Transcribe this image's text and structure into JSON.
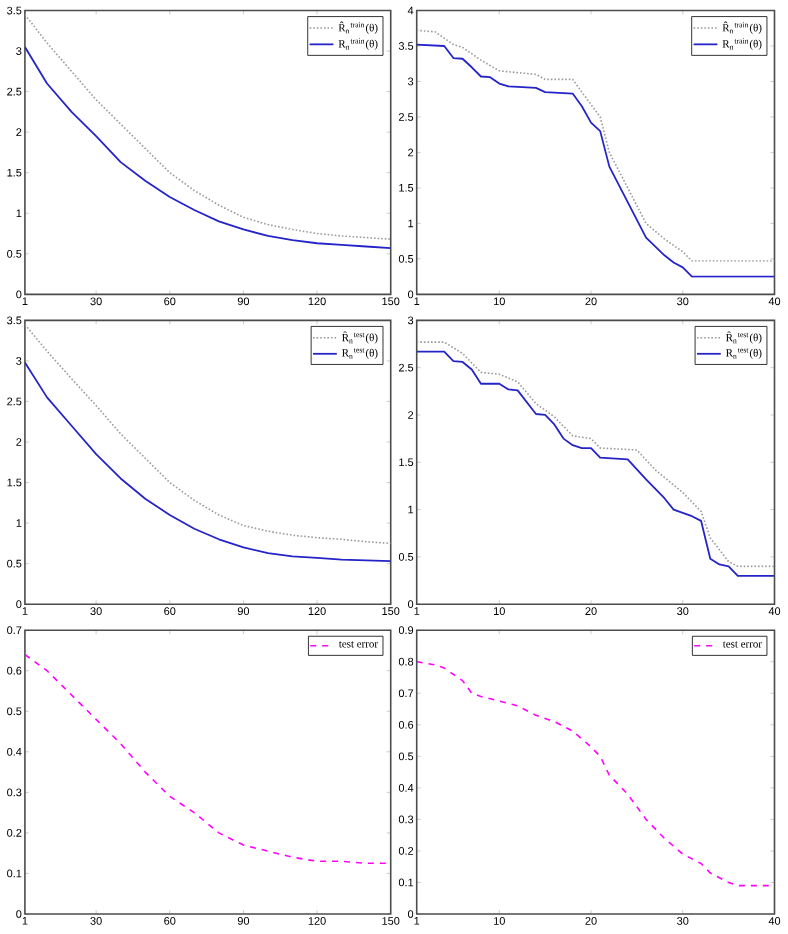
{
  "chart_data": [
    {
      "type": "line",
      "xlim": [
        1,
        150
      ],
      "ylim": [
        0,
        3.5
      ],
      "xticks": [
        1,
        30,
        60,
        90,
        120,
        150
      ],
      "yticks": [
        0,
        0.5,
        1,
        1.5,
        2,
        2.5,
        3,
        3.5
      ],
      "legend": "top right",
      "series": [
        {
          "name": "R̂$_{n}$$^{train}$(θ)",
          "color": "#9a9a9a",
          "line_style": "dotted",
          "x": [
            1,
            10,
            20,
            30,
            40,
            50,
            60,
            70,
            80,
            90,
            100,
            110,
            120,
            130,
            140,
            150
          ],
          "values": [
            3.45,
            3.1,
            2.75,
            2.4,
            2.1,
            1.8,
            1.5,
            1.28,
            1.1,
            0.95,
            0.86,
            0.8,
            0.75,
            0.72,
            0.7,
            0.68
          ]
        },
        {
          "name": "R$_{n}$$^{train}$(θ)",
          "color": "#2424c8",
          "line_style": "solid",
          "x": [
            1,
            10,
            20,
            30,
            40,
            50,
            60,
            70,
            80,
            90,
            100,
            110,
            120,
            130,
            140,
            150
          ],
          "values": [
            3.05,
            2.6,
            2.25,
            1.95,
            1.63,
            1.4,
            1.2,
            1.04,
            0.9,
            0.8,
            0.72,
            0.67,
            0.63,
            0.61,
            0.59,
            0.57
          ]
        }
      ]
    },
    {
      "type": "line",
      "xlim": [
        1,
        40
      ],
      "ylim": [
        0,
        4
      ],
      "xticks": [
        1,
        10,
        20,
        30,
        40
      ],
      "yticks": [
        0,
        0.5,
        1,
        1.5,
        2,
        2.5,
        3,
        3.5,
        4
      ],
      "legend": "top right",
      "series": [
        {
          "name": "R̂$_{n}$$^{train}$(θ)",
          "color": "#9a9a9a",
          "line_style": "dotted",
          "x": [
            1,
            3,
            5,
            6,
            8,
            10,
            14,
            15,
            18,
            19,
            21,
            22,
            24,
            26,
            28,
            30,
            31,
            40
          ],
          "values": [
            3.72,
            3.7,
            3.52,
            3.48,
            3.3,
            3.15,
            3.1,
            3.03,
            3.03,
            2.85,
            2.5,
            2.0,
            1.5,
            1.0,
            0.78,
            0.6,
            0.47,
            0.47
          ]
        },
        {
          "name": "R$_{n}$$^{train}$(θ)",
          "color": "#2424c8",
          "line_style": "solid",
          "x": [
            1,
            4,
            5,
            6,
            7,
            8,
            9,
            10,
            11,
            14,
            15,
            18,
            19,
            20,
            21,
            22,
            24,
            26,
            28,
            29,
            30,
            31,
            40
          ],
          "values": [
            3.52,
            3.5,
            3.33,
            3.32,
            3.2,
            3.07,
            3.06,
            2.97,
            2.93,
            2.91,
            2.85,
            2.83,
            2.65,
            2.42,
            2.3,
            1.8,
            1.3,
            0.8,
            0.55,
            0.45,
            0.38,
            0.25,
            0.25
          ]
        }
      ]
    },
    {
      "type": "line",
      "xlim": [
        1,
        150
      ],
      "ylim": [
        0,
        3.5
      ],
      "xticks": [
        1,
        30,
        60,
        90,
        120,
        150
      ],
      "yticks": [
        0,
        0.5,
        1,
        1.5,
        2,
        2.5,
        3,
        3.5
      ],
      "legend": "top right",
      "series": [
        {
          "name": "R̂$_{n}$$^{test}$(θ)",
          "color": "#9a9a9a",
          "line_style": "dotted",
          "x": [
            1,
            10,
            20,
            30,
            40,
            50,
            60,
            70,
            80,
            90,
            100,
            110,
            120,
            130,
            140,
            150
          ],
          "values": [
            3.45,
            3.12,
            2.78,
            2.45,
            2.1,
            1.8,
            1.5,
            1.28,
            1.1,
            0.97,
            0.9,
            0.85,
            0.82,
            0.8,
            0.77,
            0.75
          ]
        },
        {
          "name": "R$_{n}$$^{test}$(θ)",
          "color": "#2424c8",
          "line_style": "solid",
          "x": [
            1,
            10,
            20,
            30,
            40,
            50,
            60,
            70,
            80,
            90,
            100,
            110,
            120,
            130,
            140,
            150
          ],
          "values": [
            2.98,
            2.55,
            2.2,
            1.85,
            1.55,
            1.3,
            1.1,
            0.93,
            0.8,
            0.7,
            0.63,
            0.59,
            0.57,
            0.55,
            0.54,
            0.53
          ]
        }
      ]
    },
    {
      "type": "line",
      "xlim": [
        1,
        40
      ],
      "ylim": [
        0,
        3
      ],
      "xticks": [
        1,
        10,
        20,
        30,
        40
      ],
      "yticks": [
        0,
        0.5,
        1,
        1.5,
        2,
        2.5,
        3
      ],
      "legend": "top right",
      "series": [
        {
          "name": "R̂$_{n}$$^{test}$(θ)",
          "color": "#9a9a9a",
          "line_style": "dotted",
          "x": [
            1,
            4,
            6,
            8,
            10,
            12,
            14,
            16,
            18,
            20,
            21,
            25,
            27,
            30,
            32,
            33,
            35,
            36,
            40
          ],
          "values": [
            2.77,
            2.77,
            2.65,
            2.45,
            2.43,
            2.35,
            2.12,
            1.98,
            1.78,
            1.75,
            1.65,
            1.63,
            1.42,
            1.18,
            0.98,
            0.7,
            0.45,
            0.4,
            0.4
          ]
        },
        {
          "name": "R$_{n}$$^{test}$(θ)",
          "color": "#2424c8",
          "line_style": "solid",
          "x": [
            1,
            4,
            5,
            6,
            7,
            8,
            10,
            11,
            12,
            14,
            15,
            16,
            17,
            18,
            19,
            20,
            21,
            24,
            26,
            28,
            29,
            31,
            32,
            33,
            34,
            35,
            36,
            40
          ],
          "values": [
            2.67,
            2.67,
            2.57,
            2.56,
            2.48,
            2.33,
            2.33,
            2.27,
            2.26,
            2.01,
            2.0,
            1.9,
            1.75,
            1.68,
            1.65,
            1.65,
            1.55,
            1.53,
            1.32,
            1.12,
            1.0,
            0.93,
            0.88,
            0.48,
            0.42,
            0.4,
            0.3,
            0.3
          ]
        }
      ]
    },
    {
      "type": "line",
      "xlim": [
        1,
        150
      ],
      "ylim": [
        0,
        0.7
      ],
      "xticks": [
        1,
        30,
        60,
        90,
        120,
        150
      ],
      "yticks": [
        0,
        0.1,
        0.2,
        0.3,
        0.4,
        0.5,
        0.6,
        0.7
      ],
      "legend": "top right",
      "series": [
        {
          "name": "test error",
          "color": "#ff00ff",
          "line_style": "dashed",
          "x": [
            1,
            10,
            20,
            30,
            40,
            50,
            60,
            70,
            80,
            90,
            100,
            110,
            120,
            130,
            140,
            150
          ],
          "values": [
            0.64,
            0.6,
            0.54,
            0.48,
            0.42,
            0.35,
            0.29,
            0.25,
            0.2,
            0.17,
            0.155,
            0.14,
            0.13,
            0.13,
            0.125,
            0.125
          ]
        }
      ]
    },
    {
      "type": "line",
      "xlim": [
        1,
        40
      ],
      "ylim": [
        0,
        0.9
      ],
      "xticks": [
        1,
        10,
        20,
        30,
        40
      ],
      "yticks": [
        0,
        0.1,
        0.2,
        0.3,
        0.4,
        0.5,
        0.6,
        0.7,
        0.8,
        0.9
      ],
      "legend": "top right",
      "series": [
        {
          "name": "test error",
          "color": "#ff00ff",
          "line_style": "dashed",
          "x": [
            1,
            3,
            4,
            5,
            6,
            7,
            8,
            10,
            12,
            14,
            16,
            18,
            20,
            21,
            22,
            24,
            26,
            28,
            30,
            32,
            33,
            35,
            36,
            40
          ],
          "values": [
            0.8,
            0.79,
            0.78,
            0.76,
            0.74,
            0.7,
            0.69,
            0.675,
            0.66,
            0.63,
            0.61,
            0.58,
            0.53,
            0.5,
            0.44,
            0.38,
            0.3,
            0.24,
            0.19,
            0.16,
            0.13,
            0.1,
            0.09,
            0.09
          ]
        }
      ]
    }
  ]
}
